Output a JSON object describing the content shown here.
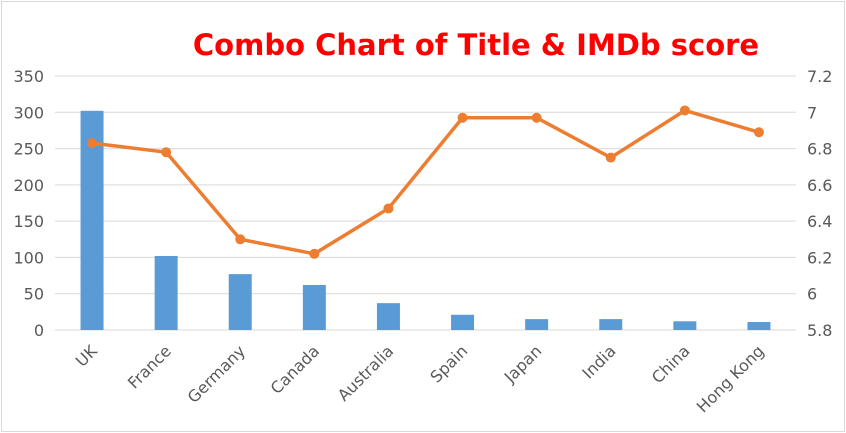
{
  "chart_data": {
    "type": "bar",
    "title": "Combo Chart of Title & IMDb score",
    "categories": [
      "UK",
      "France",
      "Germany",
      "Canada",
      "Australia",
      "Spain",
      "Japan",
      "India",
      "China",
      "Hong Kong"
    ],
    "series": [
      {
        "type": "bar",
        "axis": "left",
        "color": "#5b9bd5",
        "values": [
          302,
          102,
          77,
          62,
          37,
          21,
          15,
          15,
          12,
          11
        ]
      },
      {
        "type": "line",
        "axis": "right",
        "color": "#ed7d31",
        "values": [
          6.83,
          6.78,
          6.3,
          6.22,
          6.47,
          6.97,
          6.97,
          6.75,
          7.01,
          6.89
        ]
      }
    ],
    "y_left": {
      "min": 0,
      "max": 350,
      "step": 50,
      "tick_labels": [
        "0",
        "50",
        "100",
        "150",
        "200",
        "250",
        "300",
        "350"
      ]
    },
    "y_right": {
      "min": 5.8,
      "max": 7.2,
      "step": 0.2,
      "tick_labels": [
        "5.8",
        "6",
        "6.2",
        "6.4",
        "6.6",
        "6.8",
        "7",
        "7.2"
      ]
    },
    "grid": true,
    "legend": "none"
  }
}
